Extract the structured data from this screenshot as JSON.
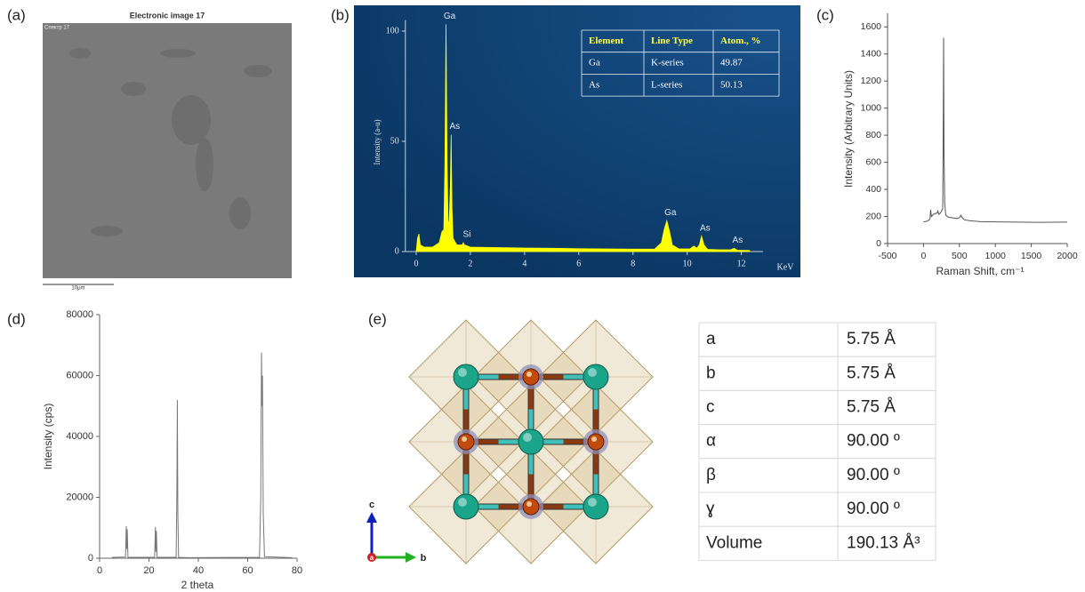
{
  "panel_labels": [
    "(a)",
    "(b)",
    "(c)",
    "(d)",
    "(e)"
  ],
  "sem_image": {
    "title": "Electronic image 17",
    "spectrum_label": "Спектр 17",
    "scale_bar": "10μm"
  },
  "chart_data": [
    {
      "type": "area",
      "xlabel": "KeV",
      "ylabel": "Intensity (a-u)",
      "x": [
        0,
        0.05,
        0.1,
        0.15,
        0.3,
        0.6,
        0.85,
        0.95,
        1.02,
        1.06,
        1.1,
        1.14,
        1.18,
        1.22,
        1.26,
        1.29,
        1.32,
        1.36,
        1.5,
        1.7,
        1.74,
        1.78,
        2,
        3,
        4,
        5,
        6,
        7,
        8,
        8.8,
        9.05,
        9.15,
        9.25,
        9.35,
        9.45,
        9.7,
        10.1,
        10.25,
        10.35,
        10.45,
        10.53,
        10.62,
        10.75,
        11.2,
        11.6,
        11.73,
        11.85,
        12.3
      ],
      "values": [
        0,
        6,
        8,
        3,
        2,
        2,
        4,
        9,
        10,
        40,
        103,
        40,
        12,
        14,
        30,
        53,
        20,
        6,
        3,
        3,
        4,
        3,
        2,
        1.8,
        1.6,
        1.5,
        1.3,
        1.2,
        1.1,
        1.1,
        4,
        10,
        14,
        9,
        3,
        1.2,
        1.2,
        2.5,
        1.5,
        3,
        7,
        3,
        1,
        0.8,
        0.8,
        1.5,
        0.6,
        0.5
      ],
      "color": "#ffff00",
      "background": "#0d3d6a",
      "xlim": [
        -0.4,
        12.8
      ],
      "xticks": [
        0,
        2,
        4,
        6,
        8,
        10,
        12
      ],
      "ylim": [
        0,
        105
      ],
      "yticks": [
        0,
        50,
        100
      ],
      "annotations": [
        {
          "text": "Ga",
          "x": 1.1
        },
        {
          "text": "As",
          "x": 1.29
        },
        {
          "text": "Si",
          "x": 1.74
        },
        {
          "text": "Ga",
          "x": 9.25
        },
        {
          "text": "As",
          "x": 10.53
        },
        {
          "text": "As",
          "x": 11.73
        }
      ],
      "table": {
        "header": [
          "Element",
          "Line Type",
          "Atom., %"
        ],
        "rows": [
          [
            "Ga",
            "K-series",
            "49.87"
          ],
          [
            "As",
            "L-series",
            "50.13"
          ]
        ]
      }
    },
    {
      "type": "line",
      "xlabel": "Raman Shift, cm⁻¹",
      "ylabel": "Intensity (Arbitrary Units)",
      "x": [
        0,
        50,
        90,
        100,
        110,
        150,
        190,
        200,
        215,
        240,
        268,
        275,
        280,
        285,
        295,
        310,
        340,
        400,
        460,
        500,
        520,
        540,
        570,
        650,
        800,
        1000,
        1300,
        1600,
        2000
      ],
      "values": [
        160,
        165,
        180,
        250,
        200,
        220,
        225,
        240,
        215,
        230,
        260,
        900,
        1520,
        700,
        300,
        210,
        195,
        190,
        185,
        190,
        210,
        190,
        175,
        168,
        162,
        160,
        158,
        157,
        158
      ],
      "color": "#555555",
      "xlim": [
        -500,
        2000
      ],
      "xticks": [
        -500,
        0,
        500,
        1000,
        1500,
        2000
      ],
      "ylim": [
        0,
        1700
      ],
      "yticks": [
        0,
        200,
        400,
        600,
        800,
        1000,
        1200,
        1400,
        1600
      ]
    },
    {
      "type": "line",
      "xlabel": "2 theta",
      "ylabel": "Intensity (cps)",
      "x": [
        5,
        10.5,
        10.8,
        11,
        11.2,
        11.5,
        22.3,
        22.6,
        22.8,
        23,
        23.3,
        31,
        31.3,
        31.5,
        31.7,
        32,
        36,
        64.8,
        65.3,
        65.6,
        65.8,
        66,
        66.3,
        66.8,
        78
      ],
      "values": [
        300,
        400,
        10500,
        3000,
        9500,
        300,
        300,
        10300,
        2000,
        9000,
        300,
        300,
        20000,
        52000,
        15000,
        300,
        200,
        300,
        20000,
        67500,
        50000,
        60000,
        15000,
        500,
        200
      ],
      "color": "#777777",
      "xlim": [
        0,
        80
      ],
      "xticks": [
        0,
        20,
        40,
        60,
        80
      ],
      "ylim": [
        0,
        80000
      ],
      "yticks": [
        0,
        20000,
        40000,
        60000,
        80000
      ]
    }
  ],
  "crystal_axes": [
    "c",
    "a",
    "b"
  ],
  "lattice_table": {
    "rows": [
      [
        "a",
        "5.75 Å"
      ],
      [
        "b",
        "5.75 Å"
      ],
      [
        "c",
        "5.75 Å"
      ],
      [
        "α",
        "90.00 º"
      ],
      [
        "β",
        "90.00 º"
      ],
      [
        "ɣ",
        "90.00 º"
      ],
      [
        "Volume",
        "190.13 Å³"
      ]
    ]
  }
}
